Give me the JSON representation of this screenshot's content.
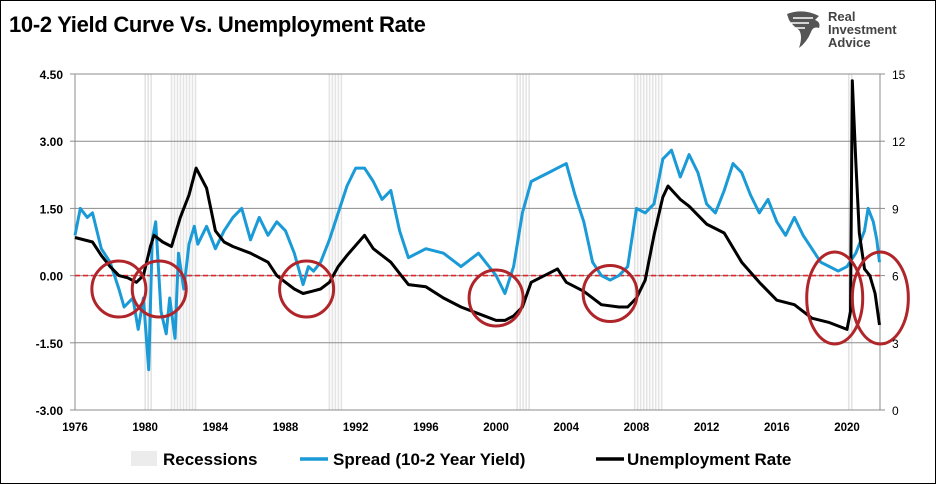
{
  "title": "10-2 Yield Curve Vs. Unemployment Rate",
  "logo": {
    "lines": [
      "Real",
      "Investment",
      "Advice"
    ]
  },
  "colors": {
    "spread": "#1a9ad6",
    "unemployment": "#000000",
    "zero_line": "#e0262b",
    "circles": "#b0252a",
    "recession": "#e4e4e4",
    "grid": "#8c8c8c"
  },
  "chart_data": {
    "type": "line",
    "title": "10-2 Yield Curve Vs. Unemployment Rate",
    "x_range": [
      1976,
      2021.9
    ],
    "x_ticks": [
      "1976",
      "1980",
      "1984",
      "1988",
      "1992",
      "1996",
      "2000",
      "2004",
      "2008",
      "2012",
      "2016",
      "2020"
    ],
    "y_left": {
      "range": [
        -3.0,
        4.5
      ],
      "ticks": [
        "4.50",
        "3.00",
        "1.50",
        "0.00",
        "-1.50",
        "-3.00"
      ]
    },
    "y_right": {
      "range": [
        0,
        15
      ],
      "ticks": [
        "15",
        "12",
        "9",
        "6",
        "3",
        "0"
      ]
    },
    "grid": true,
    "legend": {
      "placement": "bottom",
      "items": [
        "Recessions",
        "Spread (10-2 Year Yield)",
        "Unemployment Rate"
      ]
    },
    "recessions": [
      [
        1980.0,
        1980.5
      ],
      [
        1981.5,
        1982.9
      ],
      [
        1990.5,
        1991.2
      ],
      [
        2001.2,
        2001.9
      ],
      [
        2007.9,
        2009.5
      ],
      [
        2020.1,
        2020.3
      ]
    ],
    "series": [
      {
        "name": "Spread (10-2 Year Yield)",
        "axis": "left",
        "points": [
          [
            1976,
            0.9
          ],
          [
            1976.3,
            1.5
          ],
          [
            1976.7,
            1.3
          ],
          [
            1977,
            1.4
          ],
          [
            1977.5,
            0.6
          ],
          [
            1978,
            0.3
          ],
          [
            1978.5,
            -0.3
          ],
          [
            1978.8,
            -0.7
          ],
          [
            1979.3,
            -0.5
          ],
          [
            1979.6,
            -1.2
          ],
          [
            1979.9,
            -0.5
          ],
          [
            1980.2,
            -2.1
          ],
          [
            1980.4,
            0.8
          ],
          [
            1980.6,
            1.2
          ],
          [
            1980.9,
            -0.8
          ],
          [
            1981.2,
            -1.3
          ],
          [
            1981.4,
            -0.5
          ],
          [
            1981.7,
            -1.4
          ],
          [
            1981.9,
            0.5
          ],
          [
            1982.2,
            -0.3
          ],
          [
            1982.5,
            0.7
          ],
          [
            1982.8,
            1.1
          ],
          [
            1983,
            0.7
          ],
          [
            1983.5,
            1.1
          ],
          [
            1984,
            0.6
          ],
          [
            1984.5,
            1.0
          ],
          [
            1985,
            1.3
          ],
          [
            1985.5,
            1.5
          ],
          [
            1986,
            0.8
          ],
          [
            1986.5,
            1.3
          ],
          [
            1987,
            0.9
          ],
          [
            1987.5,
            1.2
          ],
          [
            1988,
            1.0
          ],
          [
            1988.5,
            0.5
          ],
          [
            1989,
            -0.2
          ],
          [
            1989.3,
            0.2
          ],
          [
            1989.6,
            0.1
          ],
          [
            1990,
            0.3
          ],
          [
            1990.5,
            0.8
          ],
          [
            1991,
            1.4
          ],
          [
            1991.5,
            2.0
          ],
          [
            1992,
            2.4
          ],
          [
            1992.5,
            2.4
          ],
          [
            1993,
            2.1
          ],
          [
            1993.5,
            1.7
          ],
          [
            1994,
            1.9
          ],
          [
            1994.5,
            1.0
          ],
          [
            1995,
            0.4
          ],
          [
            1996,
            0.6
          ],
          [
            1997,
            0.5
          ],
          [
            1998,
            0.2
          ],
          [
            1999,
            0.5
          ],
          [
            2000,
            0.0
          ],
          [
            2000.5,
            -0.4
          ],
          [
            2001,
            0.2
          ],
          [
            2001.5,
            1.4
          ],
          [
            2002,
            2.1
          ],
          [
            2002.5,
            2.2
          ],
          [
            2003,
            2.3
          ],
          [
            2003.5,
            2.4
          ],
          [
            2004,
            2.5
          ],
          [
            2004.5,
            1.8
          ],
          [
            2005,
            1.2
          ],
          [
            2005.5,
            0.3
          ],
          [
            2006,
            0.0
          ],
          [
            2006.5,
            -0.1
          ],
          [
            2007,
            0.0
          ],
          [
            2007.5,
            0.2
          ],
          [
            2008,
            1.5
          ],
          [
            2008.5,
            1.4
          ],
          [
            2009,
            1.6
          ],
          [
            2009.5,
            2.6
          ],
          [
            2010,
            2.8
          ],
          [
            2010.5,
            2.2
          ],
          [
            2011,
            2.7
          ],
          [
            2011.5,
            2.3
          ],
          [
            2012,
            1.6
          ],
          [
            2012.5,
            1.4
          ],
          [
            2013,
            1.9
          ],
          [
            2013.5,
            2.5
          ],
          [
            2014,
            2.3
          ],
          [
            2014.5,
            1.8
          ],
          [
            2015,
            1.4
          ],
          [
            2015.5,
            1.7
          ],
          [
            2016,
            1.2
          ],
          [
            2016.5,
            0.9
          ],
          [
            2017,
            1.3
          ],
          [
            2017.5,
            0.9
          ],
          [
            2018,
            0.6
          ],
          [
            2018.5,
            0.3
          ],
          [
            2019,
            0.2
          ],
          [
            2019.5,
            0.1
          ],
          [
            2020,
            0.2
          ],
          [
            2020.5,
            0.5
          ],
          [
            2021,
            1.0
          ],
          [
            2021.2,
            1.5
          ],
          [
            2021.5,
            1.2
          ],
          [
            2021.7,
            0.8
          ],
          [
            2021.85,
            0.3
          ]
        ]
      },
      {
        "name": "Unemployment Rate",
        "axis": "right",
        "points": [
          [
            1976,
            7.7
          ],
          [
            1977,
            7.5
          ],
          [
            1977.5,
            6.9
          ],
          [
            1978,
            6.4
          ],
          [
            1978.5,
            6.0
          ],
          [
            1979,
            5.9
          ],
          [
            1979.5,
            5.7
          ],
          [
            1979.9,
            6.0
          ],
          [
            1980.3,
            7.3
          ],
          [
            1980.5,
            7.8
          ],
          [
            1981,
            7.5
          ],
          [
            1981.5,
            7.3
          ],
          [
            1982,
            8.6
          ],
          [
            1982.5,
            9.6
          ],
          [
            1982.9,
            10.8
          ],
          [
            1983.5,
            9.9
          ],
          [
            1984,
            8.0
          ],
          [
            1984.5,
            7.5
          ],
          [
            1985,
            7.3
          ],
          [
            1986,
            7.0
          ],
          [
            1987,
            6.6
          ],
          [
            1987.5,
            6.0
          ],
          [
            1988,
            5.7
          ],
          [
            1988.5,
            5.4
          ],
          [
            1989,
            5.2
          ],
          [
            1989.5,
            5.3
          ],
          [
            1990,
            5.4
          ],
          [
            1990.5,
            5.7
          ],
          [
            1991,
            6.4
          ],
          [
            1991.5,
            6.9
          ],
          [
            1992.5,
            7.8
          ],
          [
            1993,
            7.2
          ],
          [
            1994,
            6.6
          ],
          [
            1994.5,
            6.1
          ],
          [
            1995,
            5.6
          ],
          [
            1996,
            5.5
          ],
          [
            1997,
            5.0
          ],
          [
            1998,
            4.6
          ],
          [
            1999,
            4.3
          ],
          [
            2000,
            4.0
          ],
          [
            2000.5,
            4.0
          ],
          [
            2001,
            4.2
          ],
          [
            2001.5,
            4.6
          ],
          [
            2002,
            5.7
          ],
          [
            2003.5,
            6.3
          ],
          [
            2004,
            5.7
          ],
          [
            2005,
            5.3
          ],
          [
            2006,
            4.7
          ],
          [
            2007,
            4.6
          ],
          [
            2007.5,
            4.6
          ],
          [
            2008,
            5.0
          ],
          [
            2008.5,
            5.8
          ],
          [
            2009,
            7.8
          ],
          [
            2009.5,
            9.5
          ],
          [
            2009.8,
            10.0
          ],
          [
            2010.5,
            9.4
          ],
          [
            2011,
            9.1
          ],
          [
            2012,
            8.3
          ],
          [
            2013,
            7.9
          ],
          [
            2014,
            6.6
          ],
          [
            2015,
            5.7
          ],
          [
            2016,
            4.9
          ],
          [
            2017,
            4.7
          ],
          [
            2018,
            4.1
          ],
          [
            2019,
            3.9
          ],
          [
            2020.0,
            3.6
          ],
          [
            2020.2,
            4.4
          ],
          [
            2020.3,
            14.7
          ],
          [
            2020.5,
            11.1
          ],
          [
            2020.7,
            7.9
          ],
          [
            2021,
            6.3
          ],
          [
            2021.3,
            6.0
          ],
          [
            2021.6,
            5.2
          ],
          [
            2021.85,
            3.8
          ]
        ]
      }
    ],
    "annotations": [
      {
        "type": "circle",
        "x": 1978.5,
        "y": -0.3
      },
      {
        "type": "circle",
        "x": 1980.8,
        "y": -0.3
      },
      {
        "type": "circle",
        "x": 1989.2,
        "y": -0.3
      },
      {
        "type": "circle",
        "x": 2000.0,
        "y": -0.5
      },
      {
        "type": "circle",
        "x": 2006.5,
        "y": -0.4
      },
      {
        "type": "ellipse",
        "x": 2019.3,
        "y": -0.5
      },
      {
        "type": "ellipse",
        "x": 2021.9,
        "y": -0.5
      }
    ]
  }
}
